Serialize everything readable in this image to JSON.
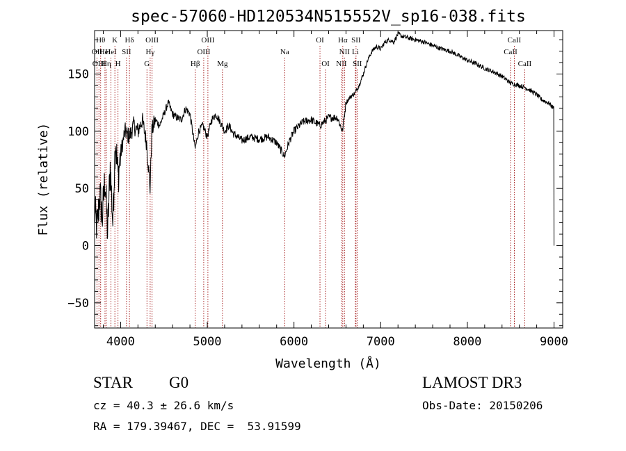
{
  "chart_data": {
    "type": "line",
    "title": "spec-57060-HD120534N515552V_sp16-038.fits",
    "xlabel": "Wavelength (Å)",
    "ylabel": "Flux (relative)",
    "xlim": [
      3700,
      9100
    ],
    "ylim": [
      -72,
      188
    ],
    "xticks": [
      4000,
      5000,
      6000,
      7000,
      8000,
      9000
    ],
    "yticks": [
      -50,
      0,
      50,
      100,
      150
    ],
    "grid": false,
    "series": [
      {
        "name": "flux",
        "color": "#000000",
        "x": [
          3700,
          3730,
          3760,
          3790,
          3820,
          3850,
          3880,
          3910,
          3940,
          3970,
          4000,
          4050,
          4100,
          4150,
          4200,
          4250,
          4300,
          4340,
          4360,
          4400,
          4450,
          4500,
          4550,
          4600,
          4650,
          4700,
          4750,
          4800,
          4860,
          4900,
          4950,
          5000,
          5050,
          5100,
          5150,
          5200,
          5250,
          5300,
          5400,
          5500,
          5600,
          5700,
          5800,
          5890,
          5950,
          6000,
          6100,
          6200,
          6300,
          6400,
          6500,
          6560,
          6600,
          6650,
          6700,
          6750,
          6800,
          6850,
          6900,
          6950,
          7000,
          7050,
          7100,
          7150,
          7200,
          7250,
          7300,
          7350,
          7400,
          7450,
          7500,
          7600,
          7700,
          7800,
          7900,
          8000,
          8100,
          8200,
          8300,
          8400,
          8500,
          8600,
          8700,
          8800,
          8850,
          8900,
          8950,
          8970,
          9000,
          9000
        ],
        "y": [
          30,
          15,
          45,
          25,
          60,
          10,
          70,
          20,
          95,
          60,
          80,
          100,
          95,
          105,
          100,
          110,
          90,
          50,
          100,
          110,
          105,
          115,
          125,
          115,
          112,
          110,
          120,
          115,
          85,
          100,
          105,
          95,
          110,
          115,
          108,
          100,
          105,
          98,
          92,
          95,
          93,
          95,
          90,
          78,
          92,
          100,
          108,
          110,
          105,
          112,
          112,
          100,
          125,
          130,
          133,
          140,
          150,
          162,
          170,
          174,
          172,
          178,
          180,
          178,
          185,
          183,
          182,
          181,
          180,
          179,
          178,
          175,
          172,
          170,
          166,
          162,
          159,
          155,
          152,
          148,
          142,
          140,
          137,
          132,
          128,
          126,
          124,
          122,
          120,
          0
        ]
      }
    ],
    "line_markers": [
      {
        "wavelength": 3727,
        "label": "OII",
        "row": 2
      },
      {
        "wavelength": 3750,
        "label": "OIII",
        "row": 3
      },
      {
        "wavelength": 3770,
        "label": "Hθ",
        "row": 1
      },
      {
        "wavelength": 3820,
        "label": "HeI",
        "row": 2
      },
      {
        "wavelength": 3835,
        "label": "Hη",
        "row": 3
      },
      {
        "wavelength": 3889,
        "label": "HeI",
        "row": 2
      },
      {
        "wavelength": 3934,
        "label": "K",
        "row": 1
      },
      {
        "wavelength": 3970,
        "label": "H",
        "row": 3
      },
      {
        "wavelength": 4068,
        "label": "SII",
        "row": 2
      },
      {
        "wavelength": 4102,
        "label": "Hδ",
        "row": 1
      },
      {
        "wavelength": 4304,
        "label": "G",
        "row": 3
      },
      {
        "wavelength": 4341,
        "label": "Hγ",
        "row": 2
      },
      {
        "wavelength": 4363,
        "label": "OIII",
        "row": 1
      },
      {
        "wavelength": 4861,
        "label": "Hβ",
        "row": 3
      },
      {
        "wavelength": 4959,
        "label": "OIII",
        "row": 2
      },
      {
        "wavelength": 5007,
        "label": "OIII",
        "row": 1
      },
      {
        "wavelength": 5175,
        "label": "Mg",
        "row": 3
      },
      {
        "wavelength": 5893,
        "label": "Na",
        "row": 2
      },
      {
        "wavelength": 6300,
        "label": "OI",
        "row": 1
      },
      {
        "wavelength": 6364,
        "label": "OI",
        "row": 3
      },
      {
        "wavelength": 6548,
        "label": "NII",
        "row": 3
      },
      {
        "wavelength": 6563,
        "label": "Hα",
        "row": 1
      },
      {
        "wavelength": 6583,
        "label": "NII",
        "row": 2
      },
      {
        "wavelength": 6708,
        "label": "Li",
        "row": 2
      },
      {
        "wavelength": 6716,
        "label": "SII",
        "row": 1
      },
      {
        "wavelength": 6731,
        "label": "SII",
        "row": 3
      },
      {
        "wavelength": 8498,
        "label": "CaII",
        "row": 2
      },
      {
        "wavelength": 8542,
        "label": "CaII",
        "row": 1
      },
      {
        "wavelength": 8662,
        "label": "CaII",
        "row": 3
      }
    ]
  },
  "info": {
    "class": "STAR",
    "subclass": "G0",
    "survey": "LAMOST DR3",
    "cz": "cz = 40.3 ± 26.6 km/s",
    "obs_date": "Obs-Date: 20150206",
    "coords": "RA = 179.39467, DEC =  53.91599"
  },
  "colors": {
    "line_marker": "#a01010",
    "spectrum": "#000000",
    "axes": "#000000"
  }
}
